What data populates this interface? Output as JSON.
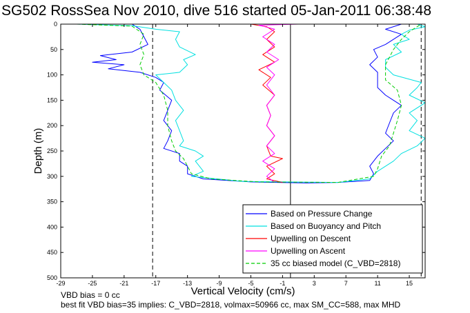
{
  "title": "SG502 RossSea Nov 2010, dive 516 started 05-Jan-2011 06:38:48",
  "footnotes": {
    "line1": "VBD bias = 0 cc",
    "line2": "best fit VBD bias=35 implies: C_VBD=2818, volmax=50966 cc, max SM_CC=588, max MHD"
  },
  "chart_data": {
    "type": "line",
    "xlabel": "Vertical Velocity (cm/s)",
    "ylabel": "Depth (m)",
    "xlim": [
      -29,
      17
    ],
    "ylim": [
      0,
      500
    ],
    "y_inverted": true,
    "xticks": [
      -29,
      -25,
      -21,
      -17,
      -13,
      -9,
      -5,
      -1,
      3,
      7,
      11,
      15
    ],
    "yticks": [
      0,
      50,
      100,
      150,
      200,
      250,
      300,
      350,
      400,
      450,
      500
    ],
    "grid": false,
    "legend_position": "bottom-right",
    "reference_lines": {
      "dashed_x": [
        -17.4,
        16.5
      ],
      "solid_x": [
        0
      ]
    },
    "series": [
      {
        "name": "Based on Pressure Change",
        "color": "#0000ff",
        "style": "solid",
        "points": [
          [
            -20,
            0
          ],
          [
            -19,
            10
          ],
          [
            -18.5,
            25
          ],
          [
            -18,
            40
          ],
          [
            -20,
            55
          ],
          [
            -24,
            62
          ],
          [
            -22,
            70
          ],
          [
            -25,
            75
          ],
          [
            -21,
            80
          ],
          [
            -23,
            88
          ],
          [
            -19,
            95
          ],
          [
            -17,
            105
          ],
          [
            -16,
            115
          ],
          [
            -16.5,
            130
          ],
          [
            -15,
            150
          ],
          [
            -15.5,
            170
          ],
          [
            -16,
            190
          ],
          [
            -15,
            210
          ],
          [
            -15.5,
            230
          ],
          [
            -16,
            245
          ],
          [
            -14,
            255
          ],
          [
            -14,
            270
          ],
          [
            -13,
            280
          ],
          [
            -13,
            295
          ],
          [
            -11,
            305
          ],
          [
            -5,
            311
          ],
          [
            2,
            313
          ],
          [
            6,
            312
          ],
          [
            10,
            308
          ],
          [
            10.5,
            295
          ],
          [
            10,
            280
          ],
          [
            11,
            260
          ],
          [
            12,
            245
          ],
          [
            13,
            230
          ],
          [
            12,
            215
          ],
          [
            12.5,
            195
          ],
          [
            13,
            175
          ],
          [
            14,
            160
          ],
          [
            13,
            150
          ],
          [
            12,
            140
          ],
          [
            11,
            125
          ],
          [
            11,
            110
          ],
          [
            11,
            95
          ],
          [
            10,
            80
          ],
          [
            11,
            65
          ],
          [
            10.5,
            50
          ],
          [
            12,
            40
          ],
          [
            13,
            30
          ],
          [
            14,
            20
          ],
          [
            12,
            10
          ],
          [
            14,
            0
          ]
        ]
      },
      {
        "name": "Based on Buoyancy and Pitch",
        "color": "#00e0e0",
        "style": "solid",
        "points": [
          [
            -27,
            0
          ],
          [
            -20,
            3
          ],
          [
            -17,
            10
          ],
          [
            -14,
            15
          ],
          [
            -14.5,
            30
          ],
          [
            -14,
            45
          ],
          [
            -12,
            60
          ],
          [
            -13.5,
            70
          ],
          [
            -13,
            80
          ],
          [
            -14,
            95
          ],
          [
            -17,
            100
          ],
          [
            -16,
            115
          ],
          [
            -15,
            130
          ],
          [
            -14.5,
            150
          ],
          [
            -13.5,
            170
          ],
          [
            -14.5,
            190
          ],
          [
            -14,
            210
          ],
          [
            -13.5,
            230
          ],
          [
            -14,
            240
          ],
          [
            -12,
            250
          ],
          [
            -11,
            260
          ],
          [
            -12,
            270
          ],
          [
            -11.5,
            280
          ],
          [
            -11,
            290
          ],
          [
            -12.5,
            300
          ],
          [
            -6,
            310
          ],
          [
            6,
            312
          ],
          [
            10,
            305
          ],
          [
            11,
            290
          ],
          [
            12,
            280
          ],
          [
            13,
            270
          ],
          [
            14,
            255
          ],
          [
            16,
            240
          ],
          [
            17,
            225
          ],
          [
            15,
            210
          ],
          [
            16,
            190
          ],
          [
            15,
            175
          ],
          [
            17,
            155
          ],
          [
            15,
            140
          ],
          [
            16,
            125
          ],
          [
            16.5,
            115
          ],
          [
            13,
            100
          ],
          [
            12,
            85
          ],
          [
            12,
            70
          ],
          [
            14,
            55
          ],
          [
            13,
            40
          ],
          [
            15,
            30
          ],
          [
            14,
            20
          ],
          [
            15,
            12
          ],
          [
            17,
            5
          ],
          [
            16,
            0
          ]
        ]
      },
      {
        "name": "Upwelling on Descent",
        "color": "#ff0000",
        "style": "solid",
        "points": [
          [
            -5,
            0
          ],
          [
            -3,
            5
          ],
          [
            -2,
            15
          ],
          [
            -3,
            30
          ],
          [
            -2,
            45
          ],
          [
            -3.5,
            60
          ],
          [
            -2,
            75
          ],
          [
            -4,
            90
          ],
          [
            -2.5,
            105
          ],
          [
            -3.5,
            120
          ],
          [
            -2,
            140
          ],
          [
            -3,
            160
          ],
          [
            -2.5,
            180
          ],
          [
            -3,
            200
          ],
          [
            -2,
            220
          ],
          [
            -3,
            240
          ],
          [
            -2.5,
            260
          ],
          [
            -1,
            265
          ],
          [
            -3,
            280
          ],
          [
            -2,
            295
          ],
          [
            -3,
            305
          ],
          [
            -1,
            312
          ]
        ]
      },
      {
        "name": "Upwelling on Ascent",
        "color": "#ff00ff",
        "style": "solid",
        "points": [
          [
            -2,
            312
          ],
          [
            -3,
            300
          ],
          [
            -2,
            285
          ],
          [
            -3.5,
            270
          ],
          [
            -2,
            255
          ],
          [
            -3,
            240
          ],
          [
            -2,
            220
          ],
          [
            -3,
            200
          ],
          [
            -2.5,
            180
          ],
          [
            -3,
            160
          ],
          [
            -2,
            140
          ],
          [
            -3,
            120
          ],
          [
            -2,
            100
          ],
          [
            -3,
            85
          ],
          [
            -1.5,
            70
          ],
          [
            -3,
            55
          ],
          [
            -2,
            40
          ],
          [
            -3.5,
            25
          ],
          [
            -2,
            10
          ],
          [
            -4,
            2
          ],
          [
            1,
            0
          ]
        ]
      },
      {
        "name": "35 cc biased model (C_VBD=2818)",
        "color": "#00cc00",
        "style": "dashed",
        "points": [
          [
            -27,
            0
          ],
          [
            -20,
            4
          ],
          [
            -18.5,
            20
          ],
          [
            -19,
            40
          ],
          [
            -18.5,
            60
          ],
          [
            -19,
            80
          ],
          [
            -18.5,
            100
          ],
          [
            -17,
            115
          ],
          [
            -16,
            140
          ],
          [
            -15.5,
            170
          ],
          [
            -15.5,
            200
          ],
          [
            -15,
            230
          ],
          [
            -14.5,
            250
          ],
          [
            -13.5,
            265
          ],
          [
            -13,
            280
          ],
          [
            -12.5,
            295
          ],
          [
            -10,
            305
          ],
          [
            -4,
            311
          ],
          [
            6,
            312
          ],
          [
            10.5,
            300
          ],
          [
            11,
            285
          ],
          [
            11.5,
            260
          ],
          [
            12.5,
            240
          ],
          [
            13,
            215
          ],
          [
            13.5,
            190
          ],
          [
            14,
            160
          ],
          [
            13.5,
            130
          ],
          [
            12,
            110
          ],
          [
            12,
            80
          ],
          [
            13,
            50
          ],
          [
            14,
            30
          ],
          [
            15,
            15
          ],
          [
            16,
            5
          ],
          [
            16.5,
            0
          ]
        ]
      }
    ]
  }
}
